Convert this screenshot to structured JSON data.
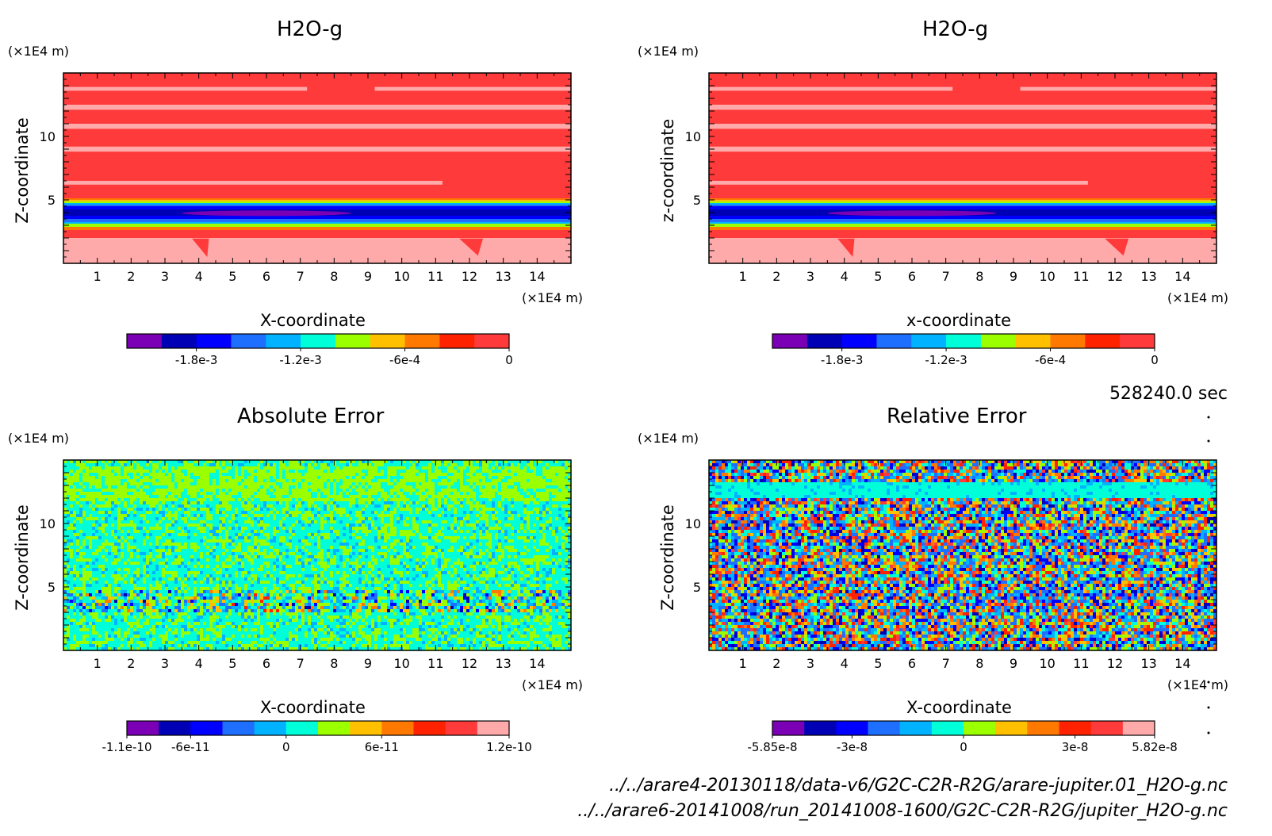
{
  "colors": {
    "scale": [
      "#7b00b5",
      "#0000b4",
      "#0000ff",
      "#1f6fff",
      "#00b2ff",
      "#00ffd8",
      "#9cff00",
      "#ffc000",
      "#ff7800",
      "#ff2200",
      "#ff3a3a",
      "#ffaaaa"
    ]
  },
  "time_label": "528240.0 sec",
  "file_paths": [
    "../../arare4-20130118/data-v6/G2C-C2R-R2G/arare-jupiter.01_H2O-g.nc",
    "../../arare6-20141008/run_20141008-1600/G2C-C2R-R2G/jupiter_H2O-g.nc"
  ],
  "chart_data": [
    {
      "type": "heatmap",
      "title": "H2O-g",
      "xlabel": "X-coordinate",
      "ylabel": "Z-coordinate",
      "x_unit": "(×1E4 m)",
      "y_unit": "(×1E4 m)",
      "xlim": [
        0,
        15
      ],
      "ylim": [
        0,
        15
      ],
      "x_ticks": [
        1,
        2,
        3,
        4,
        5,
        6,
        7,
        8,
        9,
        10,
        11,
        12,
        13,
        14
      ],
      "y_ticks": [
        5,
        10
      ],
      "field": "layered",
      "colorbar": {
        "ticks": [
          "-1.8e-3",
          "-1.2e-3",
          "-6e-4",
          "0"
        ],
        "tick_positions": [
          2,
          5,
          8,
          11
        ],
        "n_colors": 11
      }
    },
    {
      "type": "heatmap",
      "title": "H2O-g",
      "xlabel": "x-coordinate",
      "ylabel": "z-coordinate",
      "x_unit": "(×1E4 m)",
      "y_unit": "(×1E4 m)",
      "xlim": [
        0,
        15
      ],
      "ylim": [
        0,
        15
      ],
      "x_ticks": [
        1,
        2,
        3,
        4,
        5,
        6,
        7,
        8,
        9,
        10,
        11,
        12,
        13,
        14
      ],
      "y_ticks": [
        5,
        10
      ],
      "field": "layered",
      "colorbar": {
        "ticks": [
          "-1.8e-3",
          "-1.2e-3",
          "-6e-4",
          "0"
        ],
        "tick_positions": [
          2,
          5,
          8,
          11
        ],
        "n_colors": 11
      }
    },
    {
      "type": "heatmap",
      "title": "Absolute Error",
      "xlabel": "X-coordinate",
      "ylabel": "Z-coordinate",
      "x_unit": "(×1E4 m)",
      "y_unit": "(×1E4 m)",
      "xlim": [
        0,
        15
      ],
      "ylim": [
        0,
        15
      ],
      "x_ticks": [
        1,
        2,
        3,
        4,
        5,
        6,
        7,
        8,
        9,
        10,
        11,
        12,
        13,
        14
      ],
      "y_ticks": [
        5,
        10
      ],
      "field": "abs_noise",
      "colorbar": {
        "ticks": [
          "-1.1e-10",
          "-6e-11",
          "0",
          "6e-11",
          "1.2e-10"
        ],
        "tick_positions": [
          0,
          2,
          5,
          8,
          12
        ],
        "n_colors": 12
      }
    },
    {
      "type": "heatmap",
      "title": "Relative Error",
      "xlabel": "X-coordinate",
      "ylabel": "Z-coordinate",
      "x_unit": "(×1E4 m)",
      "y_unit": "(×1E4 m)",
      "xlim": [
        0,
        15
      ],
      "ylim": [
        0,
        15
      ],
      "x_ticks": [
        1,
        2,
        3,
        4,
        5,
        6,
        7,
        8,
        9,
        10,
        11,
        12,
        13,
        14
      ],
      "y_ticks": [
        5,
        10
      ],
      "field": "rel_noise",
      "colorbar": {
        "ticks": [
          "-5.85e-8",
          "-3e-8",
          "0",
          "3e-8",
          "5.82e-8"
        ],
        "tick_positions": [
          0,
          2.5,
          6,
          9.5,
          12
        ],
        "n_colors": 12
      }
    }
  ]
}
